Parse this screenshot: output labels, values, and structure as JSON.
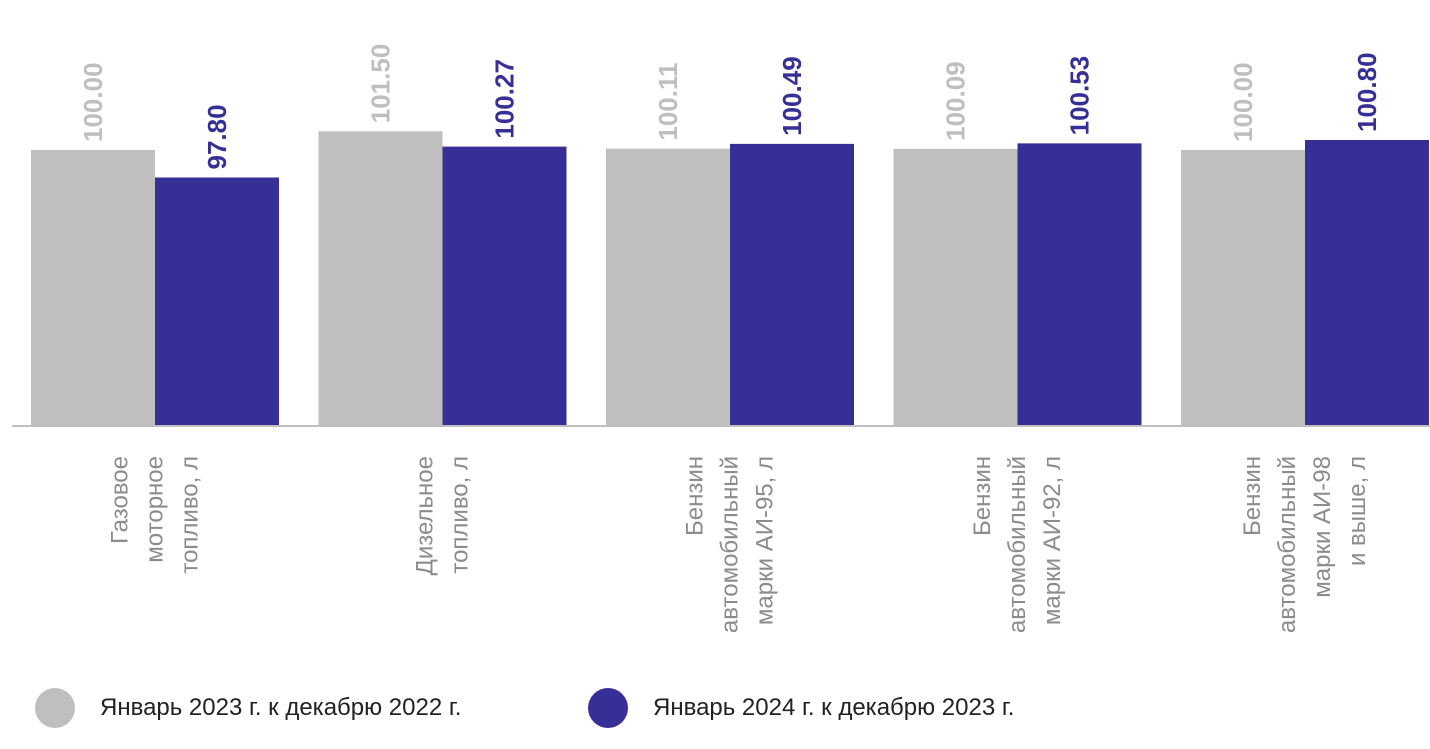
{
  "chart_data": {
    "type": "bar",
    "title": "",
    "xlabel": "",
    "ylabel": "",
    "categories": [
      [
        "Газовое",
        "моторное",
        "топливо, л"
      ],
      [
        "Дизельное",
        "топливо, л"
      ],
      [
        "Бензин",
        "автомобильный",
        "марки АИ-95, л"
      ],
      [
        "Бензин",
        "автомобильный",
        "марки АИ-92, л"
      ],
      [
        "Бензин",
        "автомобильный",
        "марки АИ-98",
        "и выше, л"
      ]
    ],
    "series": [
      {
        "name": "Январь 2023 г. к  декабрю 2022 г.",
        "values": [
          100.0,
          101.5,
          100.11,
          100.09,
          100.0
        ],
        "labels": [
          "100.00",
          "101.50",
          "100.11",
          "100.09",
          "100.00"
        ],
        "color": "#BFBFBF",
        "label_color": "#BFBFBF"
      },
      {
        "name": "Январь 2024 г. к декабрю 2023 г.",
        "values": [
          97.8,
          100.27,
          100.49,
          100.53,
          100.8
        ],
        "labels": [
          "97.80",
          "100.27",
          "100.49",
          "100.53",
          "100.80"
        ],
        "color": "#372F95",
        "label_color": "#372F95"
      }
    ],
    "data_labels": "rotated-vertical",
    "grid": false,
    "legend_position": "bottom"
  },
  "legend": [
    {
      "label": "Январь 2023 г. к  декабрю 2022 г.",
      "color": "#BFBFBF"
    },
    {
      "label": "Январь 2024 г. к декабрю 2023 г.",
      "color": "#372F95"
    }
  ]
}
